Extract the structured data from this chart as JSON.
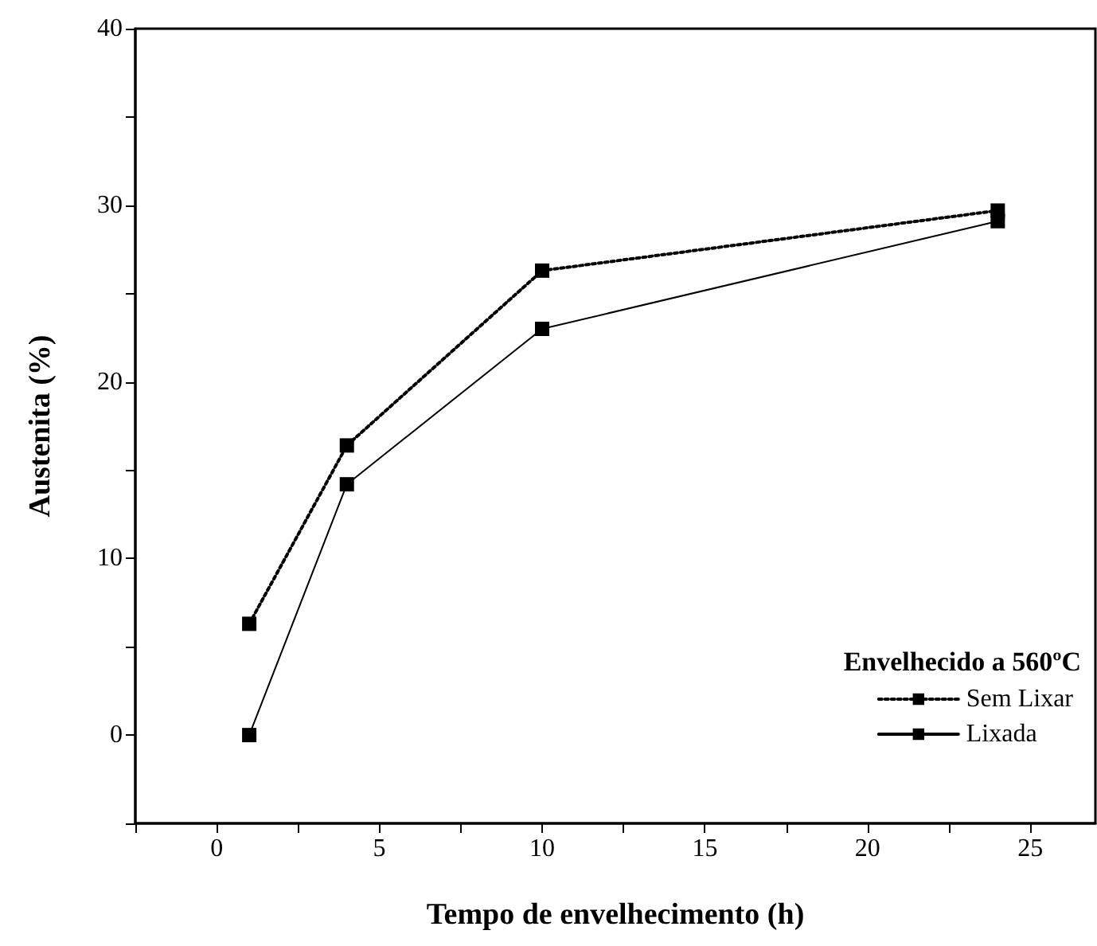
{
  "chart_data": {
    "type": "line",
    "xlabel": "Tempo de envelhecimento (h)",
    "ylabel": "Austenita (%)",
    "legend_title": "Envelhecido a 560ºC",
    "x": [
      1,
      4,
      10,
      24
    ],
    "series": [
      {
        "name": "Sem Lixar",
        "color": "#000000",
        "line_style": "dotted",
        "values": [
          6.3,
          16.4,
          26.3,
          29.7
        ]
      },
      {
        "name": "Lixada",
        "color": "#000000",
        "line_style": "solid",
        "values": [
          0,
          14.2,
          23.0,
          29.1
        ]
      }
    ],
    "xlim": [
      -2.5,
      27
    ],
    "xticks": [
      {
        "value": -2.5,
        "label": null
      },
      0,
      {
        "value": 2.5,
        "label": null
      },
      5,
      {
        "value": 7.5,
        "label": null
      },
      10,
      {
        "value": 12.5,
        "label": null
      },
      15,
      {
        "value": 17.5,
        "label": null
      },
      20,
      {
        "value": 22.5,
        "label": null
      },
      25
    ],
    "ylim": [
      -5,
      40
    ],
    "yticks": [
      {
        "value": -5,
        "label": null
      },
      0,
      {
        "value": 5,
        "label": null
      },
      10,
      {
        "value": 15,
        "label": null
      },
      20,
      {
        "value": 25,
        "label": null
      },
      30,
      {
        "value": 35,
        "label": null
      },
      40
    ],
    "marker": "square",
    "grid": false,
    "legend": "bottom right"
  }
}
